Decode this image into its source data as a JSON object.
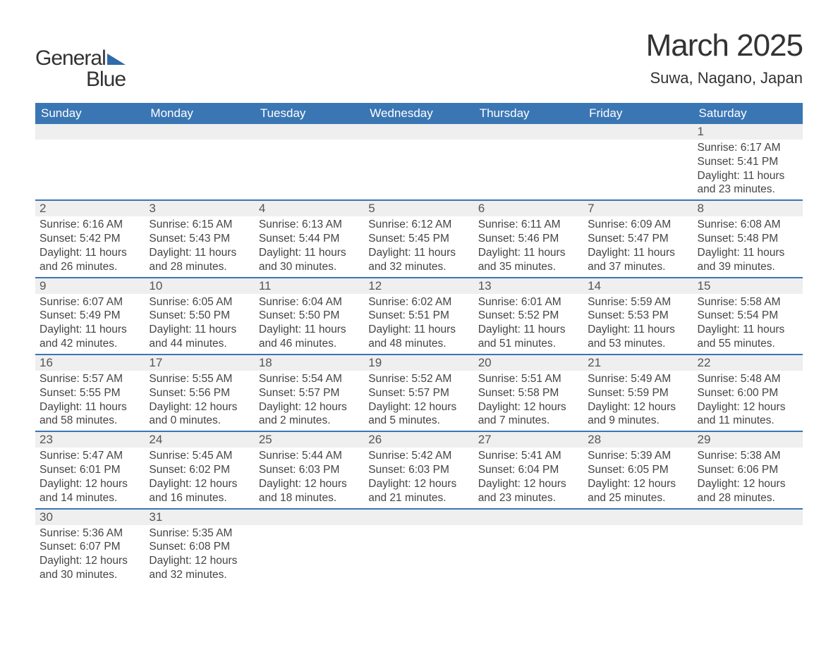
{
  "logo": {
    "line1": "General",
    "line2": "Blue",
    "triangle_color": "#2f6aab",
    "text_color": "#333333"
  },
  "title": {
    "month": "March 2025",
    "location": "Suwa, Nagano, Japan",
    "month_fontsize": 44,
    "loc_fontsize": 22
  },
  "colors": {
    "header_bg": "#3b76b4",
    "header_text": "#ffffff",
    "daynum_bg": "#eeefee",
    "daynum_text": "#555555",
    "body_text": "#444444",
    "row_divider": "#3b76b4",
    "page_bg": "#ffffff"
  },
  "weekdays": [
    "Sunday",
    "Monday",
    "Tuesday",
    "Wednesday",
    "Thursday",
    "Friday",
    "Saturday"
  ],
  "weeks": [
    [
      {
        "day": "",
        "lines": []
      },
      {
        "day": "",
        "lines": []
      },
      {
        "day": "",
        "lines": []
      },
      {
        "day": "",
        "lines": []
      },
      {
        "day": "",
        "lines": []
      },
      {
        "day": "",
        "lines": []
      },
      {
        "day": "1",
        "lines": [
          "Sunrise: 6:17 AM",
          "Sunset: 5:41 PM",
          "Daylight: 11 hours and 23 minutes."
        ]
      }
    ],
    [
      {
        "day": "2",
        "lines": [
          "Sunrise: 6:16 AM",
          "Sunset: 5:42 PM",
          "Daylight: 11 hours and 26 minutes."
        ]
      },
      {
        "day": "3",
        "lines": [
          "Sunrise: 6:15 AM",
          "Sunset: 5:43 PM",
          "Daylight: 11 hours and 28 minutes."
        ]
      },
      {
        "day": "4",
        "lines": [
          "Sunrise: 6:13 AM",
          "Sunset: 5:44 PM",
          "Daylight: 11 hours and 30 minutes."
        ]
      },
      {
        "day": "5",
        "lines": [
          "Sunrise: 6:12 AM",
          "Sunset: 5:45 PM",
          "Daylight: 11 hours and 32 minutes."
        ]
      },
      {
        "day": "6",
        "lines": [
          "Sunrise: 6:11 AM",
          "Sunset: 5:46 PM",
          "Daylight: 11 hours and 35 minutes."
        ]
      },
      {
        "day": "7",
        "lines": [
          "Sunrise: 6:09 AM",
          "Sunset: 5:47 PM",
          "Daylight: 11 hours and 37 minutes."
        ]
      },
      {
        "day": "8",
        "lines": [
          "Sunrise: 6:08 AM",
          "Sunset: 5:48 PM",
          "Daylight: 11 hours and 39 minutes."
        ]
      }
    ],
    [
      {
        "day": "9",
        "lines": [
          "Sunrise: 6:07 AM",
          "Sunset: 5:49 PM",
          "Daylight: 11 hours and 42 minutes."
        ]
      },
      {
        "day": "10",
        "lines": [
          "Sunrise: 6:05 AM",
          "Sunset: 5:50 PM",
          "Daylight: 11 hours and 44 minutes."
        ]
      },
      {
        "day": "11",
        "lines": [
          "Sunrise: 6:04 AM",
          "Sunset: 5:50 PM",
          "Daylight: 11 hours and 46 minutes."
        ]
      },
      {
        "day": "12",
        "lines": [
          "Sunrise: 6:02 AM",
          "Sunset: 5:51 PM",
          "Daylight: 11 hours and 48 minutes."
        ]
      },
      {
        "day": "13",
        "lines": [
          "Sunrise: 6:01 AM",
          "Sunset: 5:52 PM",
          "Daylight: 11 hours and 51 minutes."
        ]
      },
      {
        "day": "14",
        "lines": [
          "Sunrise: 5:59 AM",
          "Sunset: 5:53 PM",
          "Daylight: 11 hours and 53 minutes."
        ]
      },
      {
        "day": "15",
        "lines": [
          "Sunrise: 5:58 AM",
          "Sunset: 5:54 PM",
          "Daylight: 11 hours and 55 minutes."
        ]
      }
    ],
    [
      {
        "day": "16",
        "lines": [
          "Sunrise: 5:57 AM",
          "Sunset: 5:55 PM",
          "Daylight: 11 hours and 58 minutes."
        ]
      },
      {
        "day": "17",
        "lines": [
          "Sunrise: 5:55 AM",
          "Sunset: 5:56 PM",
          "Daylight: 12 hours and 0 minutes."
        ]
      },
      {
        "day": "18",
        "lines": [
          "Sunrise: 5:54 AM",
          "Sunset: 5:57 PM",
          "Daylight: 12 hours and 2 minutes."
        ]
      },
      {
        "day": "19",
        "lines": [
          "Sunrise: 5:52 AM",
          "Sunset: 5:57 PM",
          "Daylight: 12 hours and 5 minutes."
        ]
      },
      {
        "day": "20",
        "lines": [
          "Sunrise: 5:51 AM",
          "Sunset: 5:58 PM",
          "Daylight: 12 hours and 7 minutes."
        ]
      },
      {
        "day": "21",
        "lines": [
          "Sunrise: 5:49 AM",
          "Sunset: 5:59 PM",
          "Daylight: 12 hours and 9 minutes."
        ]
      },
      {
        "day": "22",
        "lines": [
          "Sunrise: 5:48 AM",
          "Sunset: 6:00 PM",
          "Daylight: 12 hours and 11 minutes."
        ]
      }
    ],
    [
      {
        "day": "23",
        "lines": [
          "Sunrise: 5:47 AM",
          "Sunset: 6:01 PM",
          "Daylight: 12 hours and 14 minutes."
        ]
      },
      {
        "day": "24",
        "lines": [
          "Sunrise: 5:45 AM",
          "Sunset: 6:02 PM",
          "Daylight: 12 hours and 16 minutes."
        ]
      },
      {
        "day": "25",
        "lines": [
          "Sunrise: 5:44 AM",
          "Sunset: 6:03 PM",
          "Daylight: 12 hours and 18 minutes."
        ]
      },
      {
        "day": "26",
        "lines": [
          "Sunrise: 5:42 AM",
          "Sunset: 6:03 PM",
          "Daylight: 12 hours and 21 minutes."
        ]
      },
      {
        "day": "27",
        "lines": [
          "Sunrise: 5:41 AM",
          "Sunset: 6:04 PM",
          "Daylight: 12 hours and 23 minutes."
        ]
      },
      {
        "day": "28",
        "lines": [
          "Sunrise: 5:39 AM",
          "Sunset: 6:05 PM",
          "Daylight: 12 hours and 25 minutes."
        ]
      },
      {
        "day": "29",
        "lines": [
          "Sunrise: 5:38 AM",
          "Sunset: 6:06 PM",
          "Daylight: 12 hours and 28 minutes."
        ]
      }
    ],
    [
      {
        "day": "30",
        "lines": [
          "Sunrise: 5:36 AM",
          "Sunset: 6:07 PM",
          "Daylight: 12 hours and 30 minutes."
        ]
      },
      {
        "day": "31",
        "lines": [
          "Sunrise: 5:35 AM",
          "Sunset: 6:08 PM",
          "Daylight: 12 hours and 32 minutes."
        ]
      },
      {
        "day": "",
        "lines": []
      },
      {
        "day": "",
        "lines": []
      },
      {
        "day": "",
        "lines": []
      },
      {
        "day": "",
        "lines": []
      },
      {
        "day": "",
        "lines": []
      }
    ]
  ]
}
